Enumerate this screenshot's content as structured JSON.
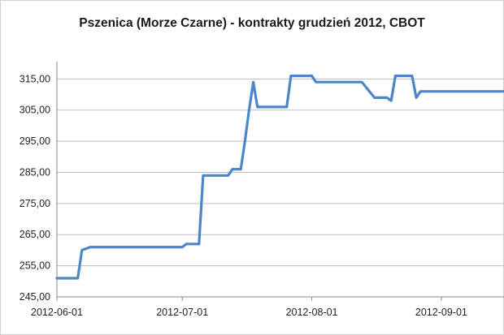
{
  "chart_data": {
    "type": "line",
    "title": "Pszenica (Morze Czarne) - kontrakty grudzień 2012, CBOT",
    "xlabel": "",
    "ylabel": "",
    "ylim": [
      245,
      319
    ],
    "yticks": [
      245,
      255,
      265,
      275,
      285,
      295,
      305,
      315
    ],
    "ytick_labels": [
      "245,00",
      "255,00",
      "265,00",
      "275,00",
      "285,00",
      "295,00",
      "305,00",
      "315,00"
    ],
    "xlim": [
      "2012-06-01",
      "2012-09-16"
    ],
    "xticks": [
      "2012-06-01",
      "2012-07-01",
      "2012-08-01",
      "2012-09-01"
    ],
    "xtick_labels": [
      "2012-06-01",
      "2012-07-01",
      "2012-08-01",
      "2012-09-01"
    ],
    "grid": "horizontal",
    "legend": "none",
    "series": [
      {
        "color": "#4a86c8",
        "x": [
          "2012-06-01",
          "2012-06-06",
          "2012-06-07",
          "2012-06-08",
          "2012-06-09",
          "2012-06-10",
          "2012-06-30",
          "2012-07-01",
          "2012-07-02",
          "2012-07-05",
          "2012-07-06",
          "2012-07-11",
          "2012-07-12",
          "2012-07-13",
          "2012-07-14",
          "2012-07-15",
          "2012-07-16",
          "2012-07-17",
          "2012-07-18",
          "2012-07-19",
          "2012-07-20",
          "2012-07-21",
          "2012-07-26",
          "2012-07-27",
          "2012-07-28",
          "2012-08-01",
          "2012-08-02",
          "2012-08-13",
          "2012-08-16",
          "2012-08-19",
          "2012-08-20",
          "2012-08-21",
          "2012-08-22",
          "2012-08-25",
          "2012-08-26",
          "2012-08-27",
          "2012-09-16"
        ],
        "y": [
          251,
          251,
          260,
          260.5,
          261,
          261,
          261,
          261,
          262,
          262,
          284,
          284,
          284,
          286,
          286,
          286,
          295,
          305,
          314,
          306,
          306,
          306,
          306,
          316,
          316,
          316,
          314,
          314,
          309,
          309,
          308,
          316,
          316,
          316,
          309,
          311,
          311
        ]
      }
    ]
  }
}
